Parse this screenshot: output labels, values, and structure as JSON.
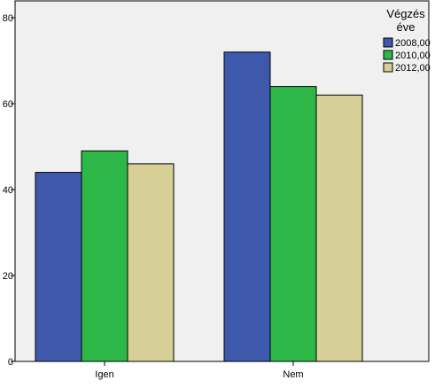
{
  "chart_data": {
    "type": "bar",
    "categories": [
      "Igen",
      "Nem"
    ],
    "series": [
      {
        "name": "2008,00",
        "color": "#3e58ac",
        "values": [
          44,
          72
        ]
      },
      {
        "name": "2010,00",
        "color": "#2db746",
        "values": [
          49,
          64
        ]
      },
      {
        "name": "2012,00",
        "color": "#d6cf96",
        "values": [
          46,
          62
        ]
      }
    ],
    "ylim": [
      0,
      84
    ],
    "yticks": [
      "0",
      "20",
      "40",
      "60",
      "80"
    ],
    "ytick_values": [
      0,
      20,
      40,
      60,
      80
    ],
    "xlabel": "",
    "ylabel": "",
    "legend": {
      "title_line1": "Végzés",
      "title_line2": "éve",
      "placement": "right"
    },
    "grid": false,
    "plot_background": "#f0f0f0"
  }
}
